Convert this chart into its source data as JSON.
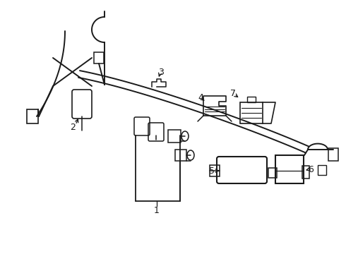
{
  "bg_color": "#ffffff",
  "line_color": "#1a1a1a",
  "fig_width": 4.9,
  "fig_height": 3.6,
  "dpi": 100,
  "label_fontsize": 9
}
